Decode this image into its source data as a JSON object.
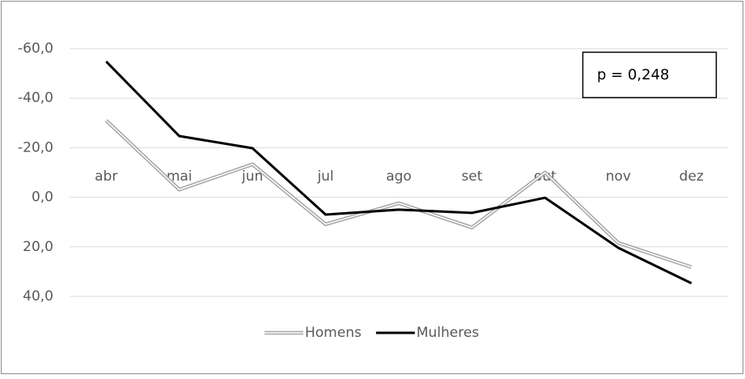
{
  "chart_data": {
    "type": "line",
    "categories": [
      "abr",
      "mai",
      "jun",
      "jul",
      "ago",
      "set",
      "out",
      "nov",
      "dez"
    ],
    "series": [
      {
        "name": "Homens",
        "color": "#a6a6a6",
        "values": [
          -31,
          -3.1,
          -13.3,
          10.9,
          2.4,
          12.2,
          -10,
          18.4,
          28.2
        ]
      },
      {
        "name": "Mulheres",
        "color": "#000000",
        "values": [
          -54.8,
          -24.7,
          -19.8,
          7,
          5,
          6.3,
          0.2,
          20.4,
          34.7
        ]
      }
    ],
    "ylim": [
      -60,
      40
    ],
    "y_reversed": true,
    "yticks": [
      {
        "value": -60,
        "label": "-60,0"
      },
      {
        "value": -40,
        "label": "-40,0"
      },
      {
        "value": -20,
        "label": "-20,0"
      },
      {
        "value": 0,
        "label": "0,0"
      },
      {
        "value": 20,
        "label": "20,0"
      },
      {
        "value": 40,
        "label": "40,0"
      }
    ],
    "grid": true,
    "legend": "bottom",
    "annotation": "p = 0,248"
  }
}
